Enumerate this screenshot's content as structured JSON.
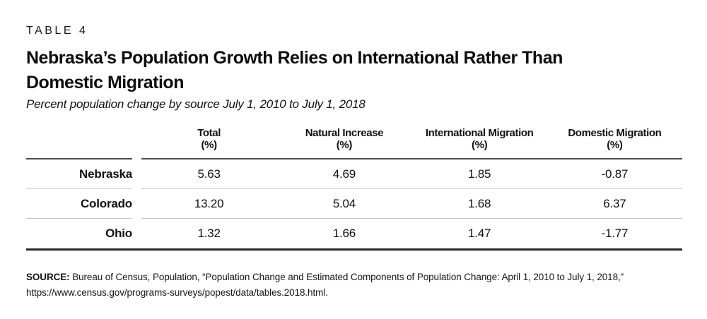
{
  "table_label": "TABLE 4",
  "title": {
    "line1": "Nebraska’s Population Growth Relies on International Rather Than",
    "line2": "Domestic Migration"
  },
  "subtitle": "Percent population change by source July 1, 2010 to July 1, 2018",
  "table": {
    "columns": [
      {
        "name": "Total",
        "unit": "(%)"
      },
      {
        "name": "Natural Increase",
        "unit": "(%)"
      },
      {
        "name": "International Migration",
        "unit": "(%)"
      },
      {
        "name": "Domestic Migration",
        "unit": "(%)"
      }
    ],
    "rows": [
      {
        "label": "Nebraska",
        "values": [
          "5.63",
          "4.69",
          "1.85",
          "-0.87"
        ]
      },
      {
        "label": "Colorado",
        "values": [
          "13.20",
          "5.04",
          "1.68",
          "6.37"
        ]
      },
      {
        "label": "Ohio",
        "values": [
          "1.32",
          "1.66",
          "1.47",
          "-1.77"
        ]
      }
    ]
  },
  "source": {
    "label": "SOURCE:",
    "text": "Bureau of Census, Population, “Population Change and Estimated Components of Population Change: April 1, 2010 to July 1, 2018,” https://www.census.gov/programs-surveys/popest/data/tables.2018.html."
  },
  "colors": {
    "text": "#111111",
    "header_rule": "#4f4f4f",
    "row_separator": "#c8c8c8",
    "bottom_rule": "#262626",
    "background": "#ffffff"
  },
  "chart_data": {
    "type": "table",
    "title": "Nebraska’s Population Growth Relies on International Rather Than Domestic Migration",
    "subtitle": "Percent population change by source July 1, 2010 to July 1, 2018",
    "columns": [
      "",
      "Total (%)",
      "Natural Increase (%)",
      "International Migration (%)",
      "Domestic Migration (%)"
    ],
    "rows": [
      [
        "Nebraska",
        5.63,
        4.69,
        1.85,
        -0.87
      ],
      [
        "Colorado",
        13.2,
        5.04,
        1.68,
        6.37
      ],
      [
        "Ohio",
        1.32,
        1.66,
        1.47,
        -1.77
      ]
    ]
  }
}
